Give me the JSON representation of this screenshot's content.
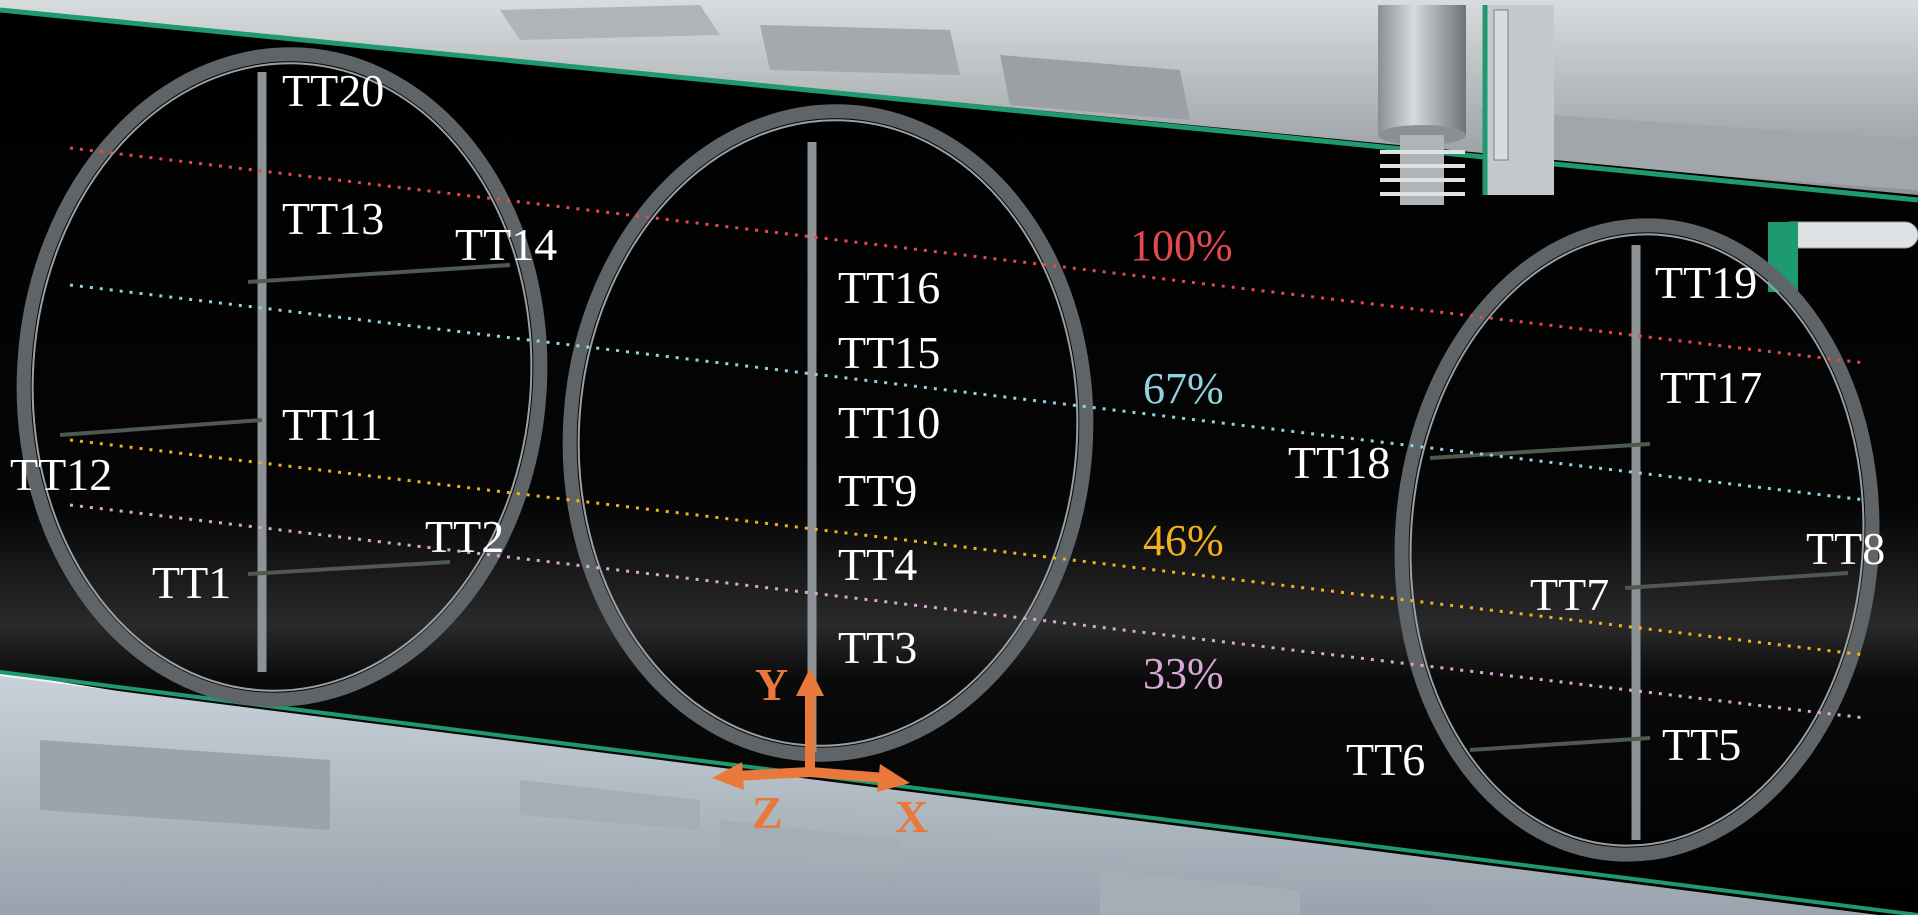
{
  "sensors": {
    "tt20": "TT20",
    "tt13": "TT13",
    "tt14": "TT14",
    "tt11": "TT11",
    "tt12": "TT12",
    "tt1": "TT1",
    "tt2": "TT2",
    "tt16": "TT16",
    "tt15": "TT15",
    "tt10": "TT10",
    "tt9": "TT9",
    "tt4": "TT4",
    "tt3": "TT3",
    "tt19": "TT19",
    "tt17": "TT17",
    "tt18": "TT18",
    "tt8": "TT8",
    "tt7": "TT7",
    "tt6": "TT6",
    "tt5": "TT5"
  },
  "fill_levels": [
    {
      "label": "100%",
      "color": "#e5484d"
    },
    {
      "label": "67%",
      "color": "#8fd3e0"
    },
    {
      "label": "46%",
      "color": "#f2b01e"
    },
    {
      "label": "33%",
      "color": "#d9a6d8"
    }
  ],
  "axes": {
    "x": "X",
    "y": "Y",
    "z": "Z",
    "color": "#e8793a"
  },
  "colors": {
    "tank_interior": "#000000",
    "steel": "#b8bcc0",
    "seam": "#1f9a6e",
    "ring": "#5f6468"
  }
}
